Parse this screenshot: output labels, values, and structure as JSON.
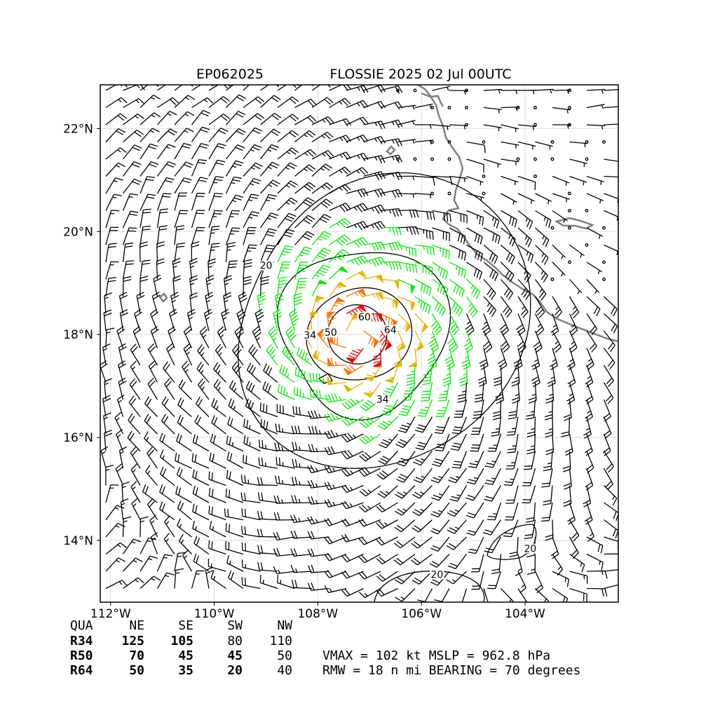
{
  "figure": {
    "storm_id": "EP062025",
    "storm_title": "FLOSSIE 2025 02 Jul 00UTC"
  },
  "map": {
    "lon_range": [
      -112.2,
      -102.2
    ],
    "lat_range": [
      12.8,
      22.85
    ],
    "lon_ticks": [
      {
        "value": -112,
        "label": "112°W"
      },
      {
        "value": -110,
        "label": "110°W"
      },
      {
        "value": -108,
        "label": "108°W"
      },
      {
        "value": -106,
        "label": "106°W"
      },
      {
        "value": -104,
        "label": "104°W"
      }
    ],
    "lat_ticks": [
      {
        "value": 14,
        "label": "14°N"
      },
      {
        "value": 16,
        "label": "16°N"
      },
      {
        "value": 18,
        "label": "18°N"
      },
      {
        "value": 20,
        "label": "20°N"
      },
      {
        "value": 22,
        "label": "22°N"
      }
    ],
    "grid": true,
    "storm_center": {
      "lon": -107.3,
      "lat": 17.95
    },
    "contour_labels": [
      {
        "text": "20",
        "lon": -109.0,
        "lat": 19.3
      },
      {
        "text": "34",
        "lon": -108.15,
        "lat": 17.95
      },
      {
        "text": "50",
        "lon": -107.75,
        "lat": 18.0
      },
      {
        "text": "60",
        "lon": -107.1,
        "lat": 18.3
      },
      {
        "text": "64",
        "lon": -106.6,
        "lat": 18.05
      },
      {
        "text": "34",
        "lon": -106.75,
        "lat": 16.7
      },
      {
        "text": "20",
        "lon": -103.9,
        "lat": 13.8
      },
      {
        "text": "20",
        "lon": -105.7,
        "lat": 13.3
      }
    ],
    "barb_colors": {
      "below_34kt": "#000000",
      "34_to_50kt": "#00ee00",
      "50_to_64kt": "#e8b400",
      "64_to_80kt": "#ff7000",
      "above_80kt": "#ee0000"
    },
    "coast_color": "#808080",
    "wind_radii_nmi": {
      "R34": [
        125,
        105,
        80,
        110
      ],
      "R50": [
        70,
        45,
        45,
        50
      ],
      "R64": [
        50,
        35,
        20,
        40
      ]
    }
  },
  "table": {
    "header": [
      "QUA",
      "NE",
      "SE",
      "SW",
      "NW"
    ],
    "rows": [
      {
        "name": "R34",
        "ne": "125",
        "se": "105",
        "sw": "80",
        "nw": "110"
      },
      {
        "name": "R50",
        "ne": "70",
        "se": "45",
        "sw": "45",
        "nw": "50"
      },
      {
        "name": "R64",
        "ne": "50",
        "se": "35",
        "sw": "20",
        "nw": "40"
      }
    ]
  },
  "stats": {
    "line1": "VMAX = 102 kt MSLP = 962.8 hPa",
    "line2": "RMW =  18 n mi BEARING =  70 degrees"
  }
}
